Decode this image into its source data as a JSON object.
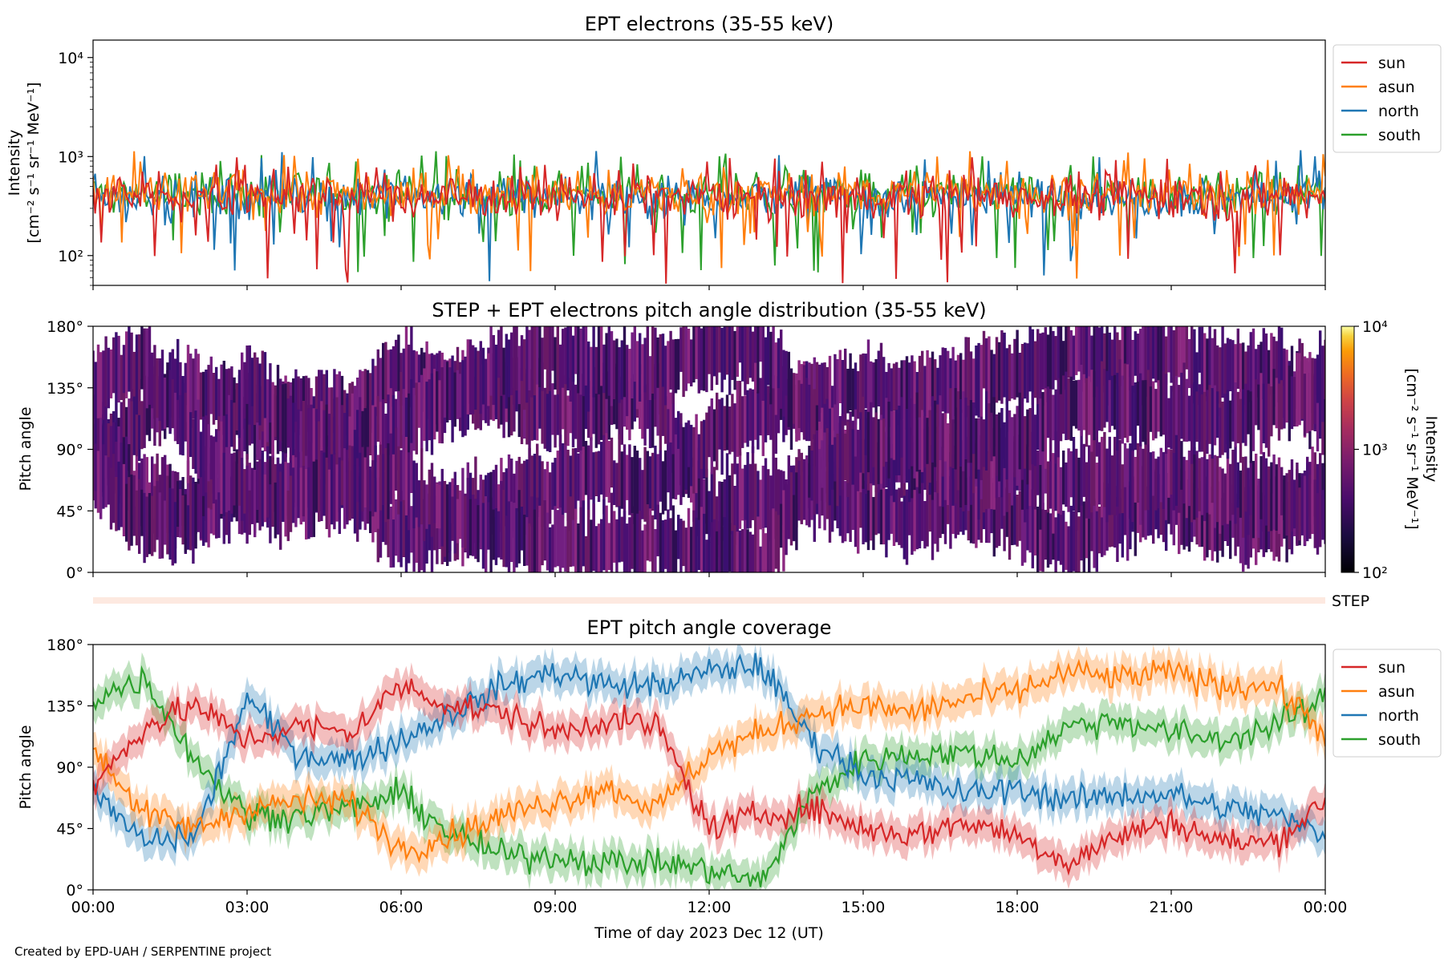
{
  "figure": {
    "credit": "Created by EPD-UAH / SERPENTINE project",
    "xlabel": "Time of day 2023 Dec 12 (UT)"
  },
  "chart_data": [
    {
      "type": "line",
      "title": "EPT electrons (35-55 keV)",
      "ylabel_line1": "Intensity",
      "ylabel_line2": "[cm⁻² s⁻¹ sr⁻¹ MeV⁻¹]",
      "yscale": "log",
      "ylim": [
        50,
        15000
      ],
      "yticks": [
        {
          "value": 100,
          "label": "10²"
        },
        {
          "value": 1000,
          "label": "10³"
        },
        {
          "value": 10000,
          "label": "10⁴"
        }
      ],
      "xlim_hours": [
        0,
        24
      ],
      "legend": {
        "placement": "outside-right-top",
        "entries": [
          "sun",
          "asun",
          "north",
          "south"
        ]
      },
      "series": [
        {
          "name": "south",
          "color": "#2ca02c",
          "typical_value": 420,
          "min": 60,
          "max": 1150
        },
        {
          "name": "north",
          "color": "#1f77b4",
          "typical_value": 400,
          "min": 50,
          "max": 1200
        },
        {
          "name": "asun",
          "color": "#ff7f0e",
          "typical_value": 430,
          "min": 55,
          "max": 1150
        },
        {
          "name": "sun",
          "color": "#d62728",
          "typical_value": 400,
          "min": 50,
          "max": 1000
        }
      ]
    },
    {
      "type": "heatmap",
      "title": "STEP + EPT electrons pitch angle distribution (35-55 keV)",
      "ylabel": "Pitch angle",
      "ylim": [
        0,
        180
      ],
      "yticks": [
        "0°",
        "45°",
        "90°",
        "135°",
        "180°"
      ],
      "xlim_hours": [
        0,
        24
      ],
      "colorbar": {
        "scale": "log",
        "range": [
          100,
          10000
        ],
        "ticks": [
          "10²",
          "10³",
          "10⁴"
        ],
        "label_line1": "Intensity",
        "label_line2": "[cm⁻² s⁻¹ sr⁻¹ MeV⁻¹]",
        "colormap": "inferno"
      },
      "step_label": "STEP"
    },
    {
      "type": "line",
      "title": "EPT pitch angle coverage",
      "ylabel": "Pitch angle",
      "ylim": [
        0,
        180
      ],
      "yticks": [
        "0°",
        "45°",
        "90°",
        "135°",
        "180°"
      ],
      "xlim_hours": [
        0,
        24
      ],
      "xticks": [
        "00:00",
        "03:00",
        "06:00",
        "09:00",
        "12:00",
        "15:00",
        "18:00",
        "21:00",
        "00:00"
      ],
      "legend": {
        "placement": "outside-right-top",
        "entries": [
          "sun",
          "asun",
          "north",
          "south"
        ]
      },
      "series": [
        {
          "name": "sun",
          "color": "#d62728",
          "x_hours": [
            0,
            1,
            2,
            3,
            4,
            5,
            6,
            7,
            8,
            9,
            10,
            11,
            12,
            13,
            14,
            15,
            16,
            17,
            18,
            19,
            20,
            21,
            22,
            23,
            24
          ],
          "values": [
            75,
            120,
            135,
            110,
            120,
            115,
            150,
            135,
            130,
            115,
            125,
            120,
            45,
            55,
            60,
            45,
            40,
            50,
            40,
            20,
            40,
            50,
            35,
            35,
            65
          ]
        },
        {
          "name": "asun",
          "color": "#ff7f0e",
          "x_hours": [
            0,
            1,
            2,
            3,
            4,
            5,
            6,
            7,
            8,
            9,
            10,
            11,
            12,
            13,
            14,
            15,
            16,
            17,
            18,
            19,
            20,
            21,
            22,
            23,
            24
          ],
          "values": [
            105,
            55,
            45,
            60,
            65,
            65,
            30,
            40,
            55,
            65,
            75,
            60,
            100,
            115,
            130,
            135,
            130,
            140,
            145,
            160,
            155,
            160,
            150,
            150,
            115
          ]
        },
        {
          "name": "north",
          "color": "#1f77b4",
          "x_hours": [
            0,
            1,
            2,
            3,
            4,
            5,
            6,
            7,
            8,
            9,
            10,
            11,
            12,
            13,
            14,
            15,
            16,
            17,
            18,
            19,
            20,
            21,
            22,
            23,
            24
          ],
          "values": [
            70,
            35,
            40,
            140,
            100,
            95,
            110,
            130,
            150,
            160,
            150,
            150,
            160,
            165,
            110,
            85,
            80,
            70,
            75,
            65,
            70,
            70,
            60,
            55,
            40
          ]
        },
        {
          "name": "south",
          "color": "#2ca02c",
          "x_hours": [
            0,
            1,
            2,
            3,
            4,
            5,
            6,
            7,
            8,
            9,
            10,
            11,
            12,
            13,
            14,
            15,
            16,
            17,
            18,
            19,
            20,
            21,
            22,
            23,
            24
          ],
          "values": [
            140,
            155,
            95,
            55,
            55,
            60,
            70,
            40,
            25,
            25,
            20,
            20,
            15,
            5,
            70,
            95,
            100,
            100,
            95,
            120,
            125,
            115,
            110,
            120,
            140
          ]
        }
      ]
    }
  ]
}
